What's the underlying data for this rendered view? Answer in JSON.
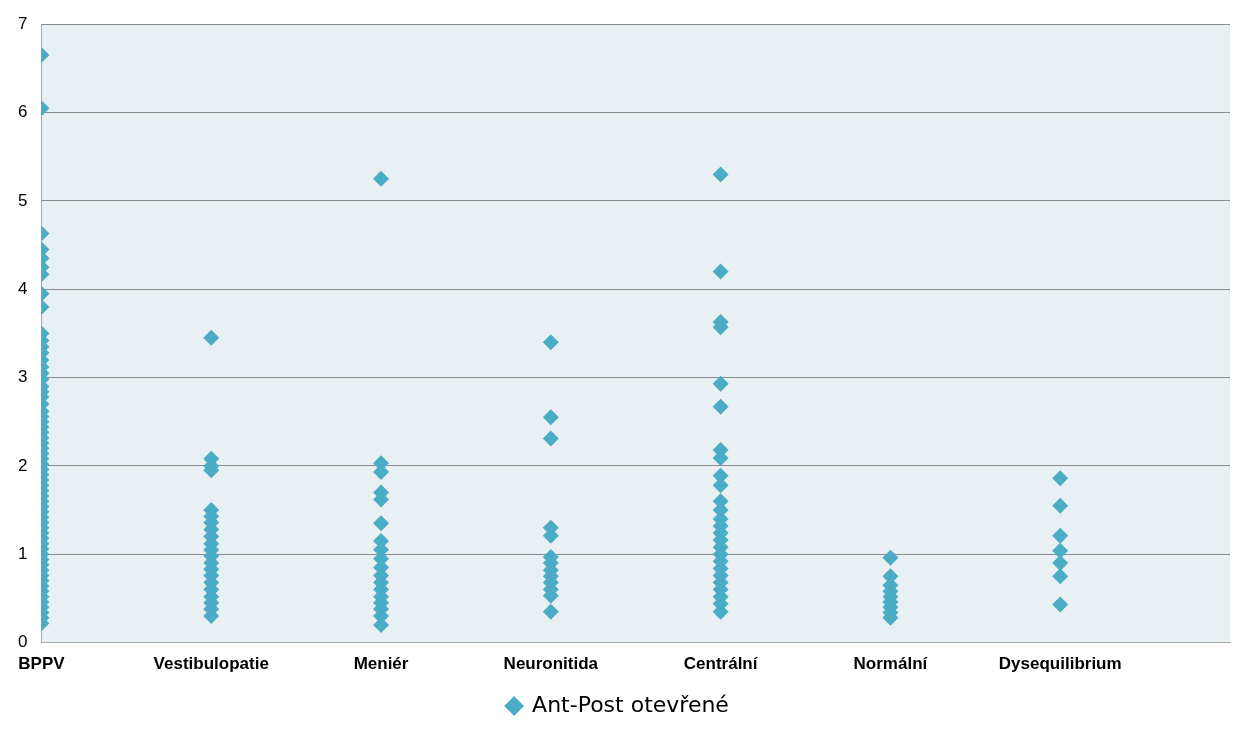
{
  "chart_data": {
    "type": "scatter",
    "categories": [
      "BPPV",
      "Vestibulopatie",
      "Meniér",
      "Neuronitida",
      "Centrální",
      "Normální",
      "Dysequilibrium"
    ],
    "ylim": [
      0,
      7
    ],
    "yticks": [
      0,
      1,
      2,
      3,
      4,
      5,
      6,
      7
    ],
    "grid": "y",
    "legend": "bottom",
    "marker": "diamond",
    "series": [
      {
        "name": "Ant-Post otevřené",
        "color": "#4bacc6",
        "x": [
          "BPPV",
          "BPPV",
          "BPPV",
          "BPPV",
          "BPPV",
          "BPPV",
          "BPPV",
          "BPPV",
          "BPPV",
          "BPPV",
          "BPPV",
          "BPPV",
          "BPPV",
          "BPPV",
          "BPPV",
          "BPPV",
          "BPPV",
          "BPPV",
          "BPPV",
          "BPPV",
          "BPPV",
          "BPPV",
          "BPPV",
          "BPPV",
          "BPPV",
          "BPPV",
          "BPPV",
          "BPPV",
          "BPPV",
          "BPPV",
          "BPPV",
          "BPPV",
          "BPPV",
          "BPPV",
          "BPPV",
          "BPPV",
          "BPPV",
          "BPPV",
          "BPPV",
          "BPPV",
          "BPPV",
          "BPPV",
          "BPPV",
          "BPPV",
          "BPPV",
          "BPPV",
          "BPPV",
          "BPPV",
          "BPPV",
          "BPPV",
          "BPPV",
          "BPPV",
          "BPPV",
          "BPPV",
          "BPPV",
          "BPPV",
          "BPPV",
          "BPPV",
          "BPPV",
          "BPPV",
          "BPPV",
          "BPPV",
          "Vestibulopatie",
          "Vestibulopatie",
          "Vestibulopatie",
          "Vestibulopatie",
          "Vestibulopatie",
          "Vestibulopatie",
          "Vestibulopatie",
          "Vestibulopatie",
          "Vestibulopatie",
          "Vestibulopatie",
          "Vestibulopatie",
          "Vestibulopatie",
          "Vestibulopatie",
          "Vestibulopatie",
          "Vestibulopatie",
          "Vestibulopatie",
          "Vestibulopatie",
          "Vestibulopatie",
          "Vestibulopatie",
          "Vestibulopatie",
          "Vestibulopatie",
          "Meniér",
          "Meniér",
          "Meniér",
          "Meniér",
          "Meniér",
          "Meniér",
          "Meniér",
          "Meniér",
          "Meniér",
          "Meniér",
          "Meniér",
          "Meniér",
          "Meniér",
          "Meniér",
          "Meniér",
          "Meniér",
          "Meniér",
          "Meniér",
          "Neuronitida",
          "Neuronitida",
          "Neuronitida",
          "Neuronitida",
          "Neuronitida",
          "Neuronitida",
          "Neuronitida",
          "Neuronitida",
          "Neuronitida",
          "Neuronitida",
          "Neuronitida",
          "Neuronitida",
          "Neuronitida",
          "Centrální",
          "Centrální",
          "Centrální",
          "Centrální",
          "Centrální",
          "Centrální",
          "Centrální",
          "Centrální",
          "Centrální",
          "Centrální",
          "Centrální",
          "Centrální",
          "Centrální",
          "Centrální",
          "Centrální",
          "Centrální",
          "Centrální",
          "Centrální",
          "Centrální",
          "Centrální",
          "Centrální",
          "Centrální",
          "Centrální",
          "Centrální",
          "Centrální",
          "Centrální",
          "Normální",
          "Normální",
          "Normální",
          "Normální",
          "Normální",
          "Normální",
          "Normální",
          "Normální",
          "Normální",
          "Dysequilibrium",
          "Dysequilibrium",
          "Dysequilibrium",
          "Dysequilibrium",
          "Dysequilibrium",
          "Dysequilibrium",
          "Dysequilibrium"
        ],
        "values": [
          6.65,
          6.05,
          4.63,
          4.45,
          4.35,
          4.25,
          4.17,
          3.95,
          3.8,
          3.5,
          3.42,
          3.35,
          3.28,
          3.2,
          3.12,
          3.05,
          2.98,
          2.9,
          2.84,
          2.78,
          2.7,
          2.62,
          2.56,
          2.5,
          2.44,
          2.38,
          2.32,
          2.26,
          2.2,
          2.14,
          2.08,
          2.02,
          1.96,
          1.9,
          1.84,
          1.78,
          1.72,
          1.66,
          1.6,
          1.54,
          1.48,
          1.42,
          1.36,
          1.3,
          1.24,
          1.18,
          1.12,
          1.06,
          1.0,
          0.94,
          0.88,
          0.82,
          0.76,
          0.7,
          0.64,
          0.58,
          0.52,
          0.46,
          0.4,
          0.34,
          0.28,
          0.22,
          3.45,
          2.08,
          2.0,
          1.95,
          1.5,
          1.43,
          1.36,
          1.28,
          1.2,
          1.12,
          1.05,
          0.98,
          0.9,
          0.83,
          0.76,
          0.68,
          0.6,
          0.52,
          0.45,
          0.38,
          0.3,
          5.25,
          2.03,
          1.93,
          1.7,
          1.62,
          1.35,
          1.15,
          1.05,
          0.95,
          0.85,
          0.76,
          0.68,
          0.6,
          0.52,
          0.45,
          0.38,
          0.3,
          0.2,
          3.4,
          2.55,
          2.31,
          1.3,
          1.21,
          0.97,
          0.9,
          0.82,
          0.75,
          0.68,
          0.6,
          0.53,
          0.35,
          5.3,
          4.2,
          3.63,
          3.57,
          2.93,
          2.67,
          2.18,
          2.09,
          1.89,
          1.78,
          1.6,
          1.5,
          1.4,
          1.32,
          1.24,
          1.16,
          1.08,
          1.0,
          0.92,
          0.84,
          0.76,
          0.68,
          0.6,
          0.52,
          0.44,
          0.35,
          0.96,
          0.75,
          0.65,
          0.58,
          0.52,
          0.46,
          0.4,
          0.34,
          0.28,
          1.86,
          1.55,
          1.21,
          1.04,
          0.9,
          0.75,
          0.43
        ]
      }
    ]
  }
}
